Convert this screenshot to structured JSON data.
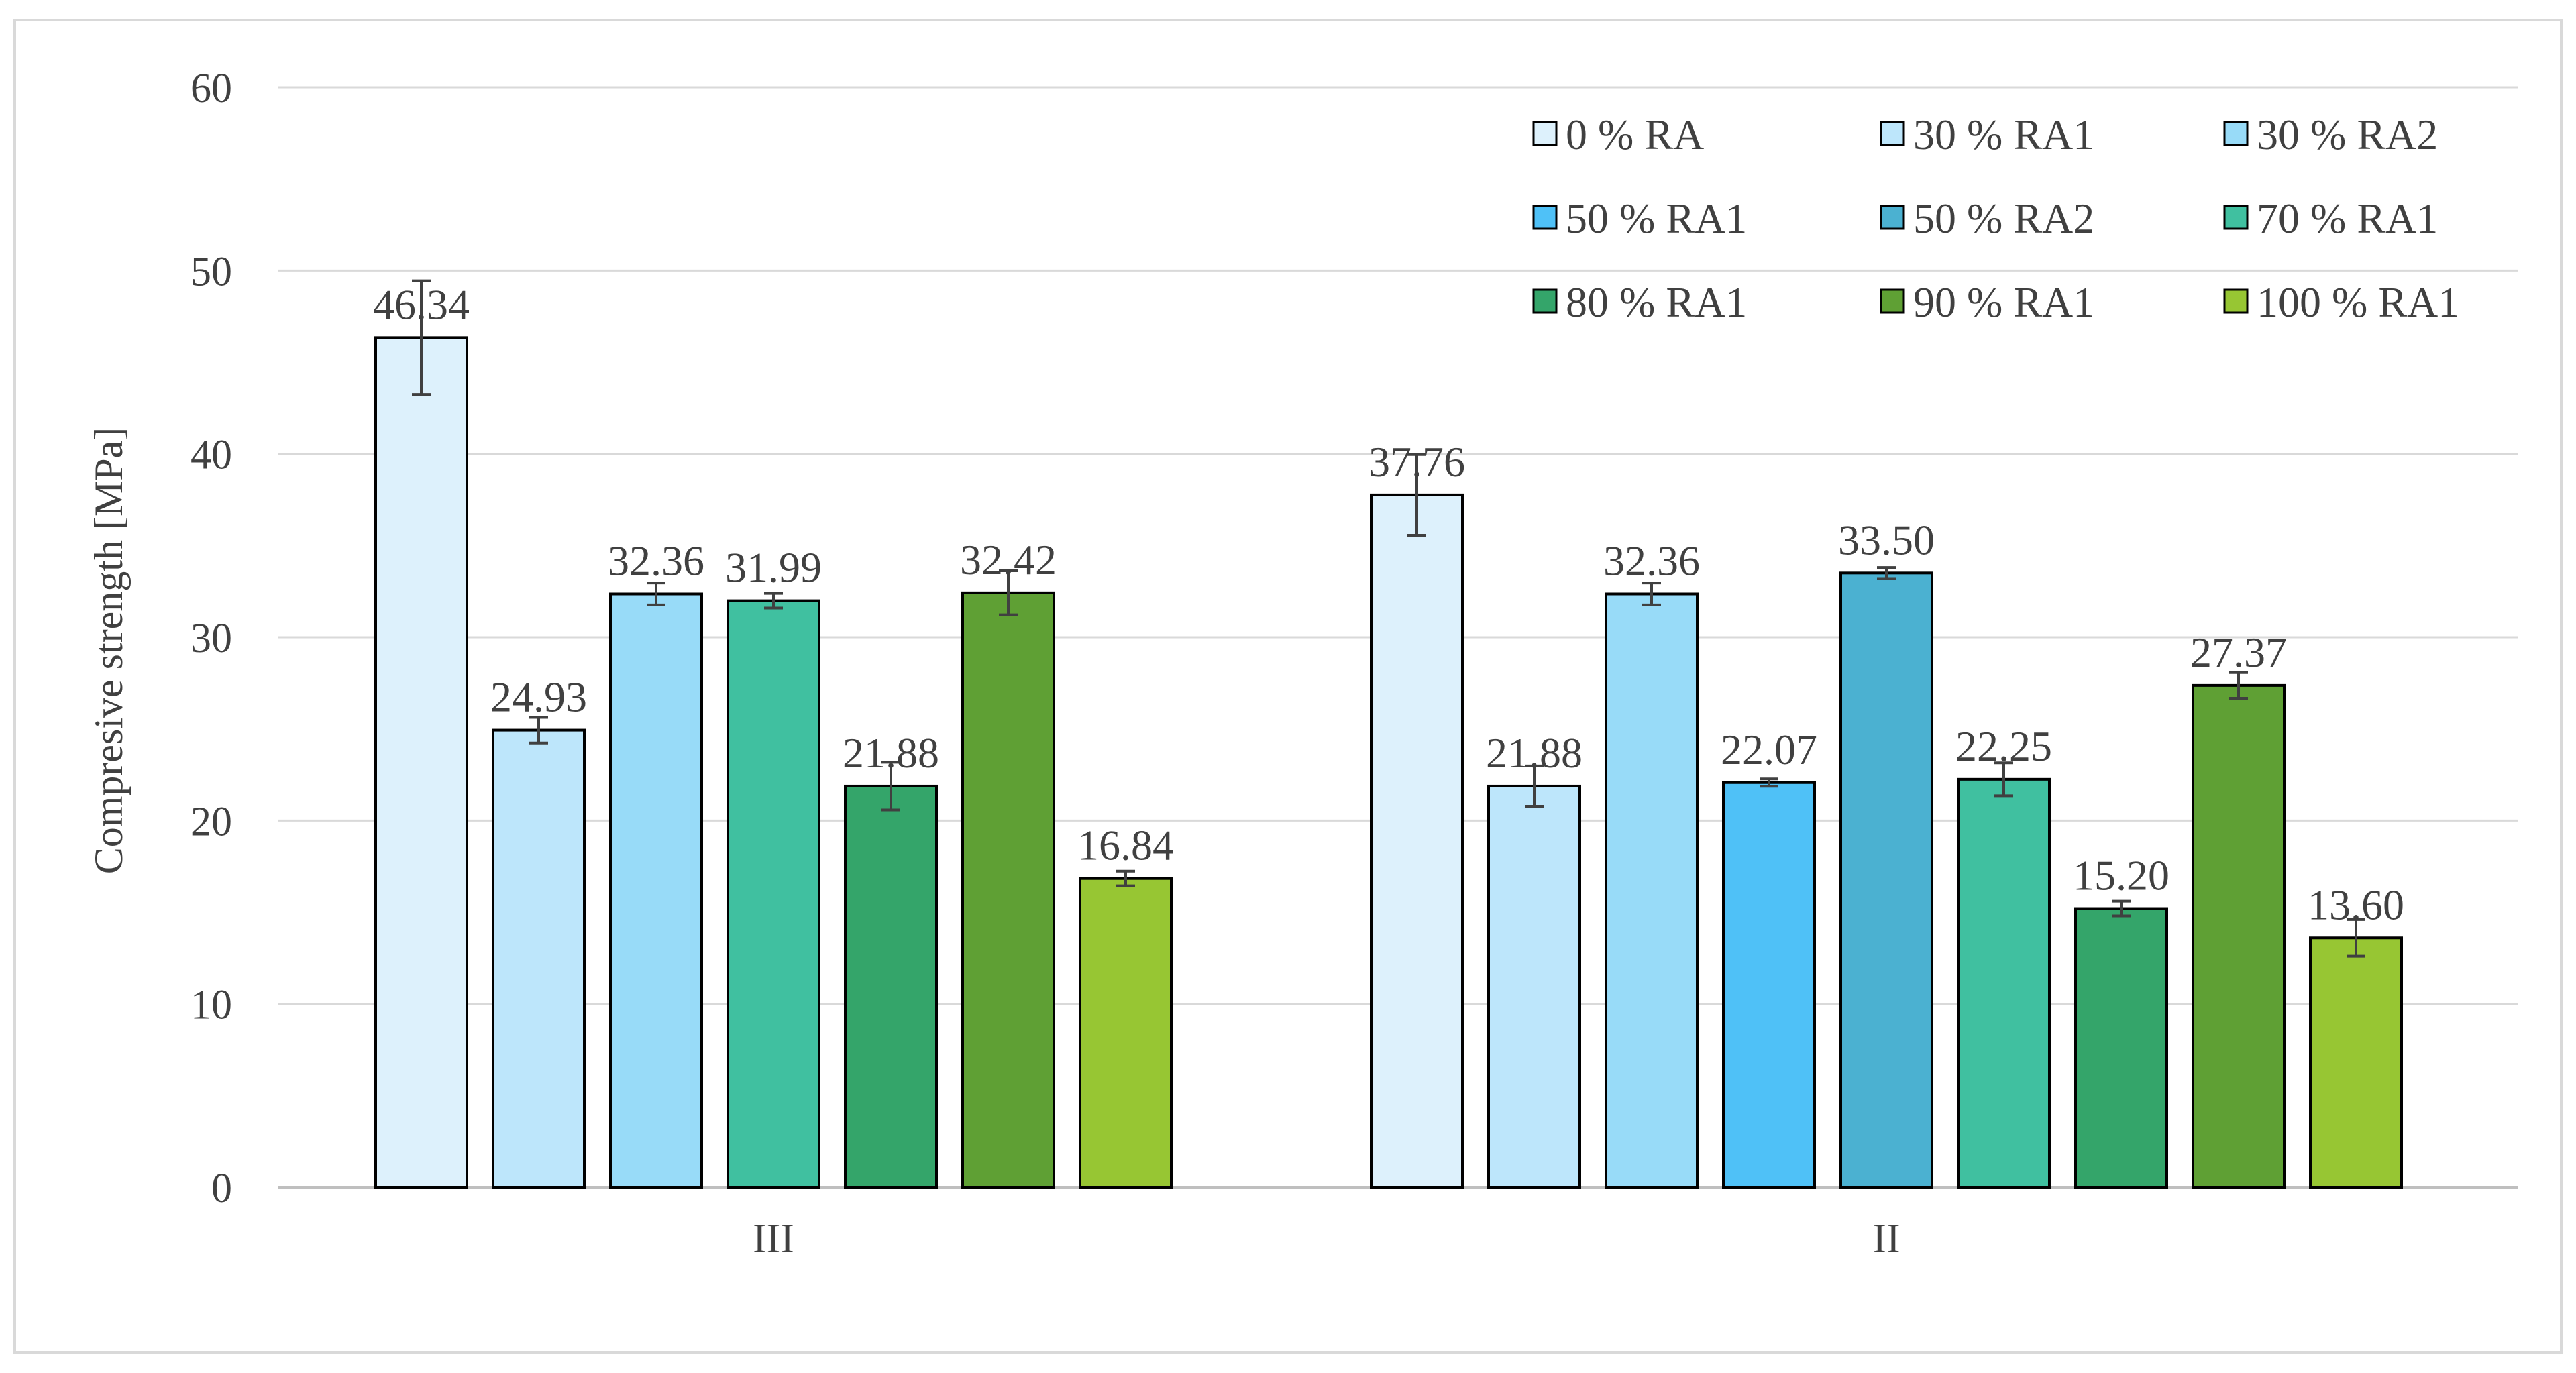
{
  "chart_data": {
    "type": "bar",
    "title": "",
    "xlabel": "",
    "ylabel": "Compresive  strength  [MPa]",
    "ylim": [
      0,
      60
    ],
    "yticks": [
      0,
      10,
      20,
      30,
      40,
      50,
      60
    ],
    "grid": true,
    "legend_position": "top-right",
    "legend": [
      {
        "name": "0 % RA",
        "color": "#ddf1fc"
      },
      {
        "name": "30 % RA1",
        "color": "#bde6fb"
      },
      {
        "name": "30 % RA2",
        "color": "#98dbf8"
      },
      {
        "name": "50 % RA1",
        "color": "#4fc1f7"
      },
      {
        "name": "50 % RA2",
        "color": "#4bb1d1"
      },
      {
        "name": "70 % RA1",
        "color": "#40c0a0"
      },
      {
        "name": "80 % RA1",
        "color": "#34a56a"
      },
      {
        "name": "90 % RA1",
        "color": "#5fa034"
      },
      {
        "name": "100 % RA1",
        "color": "#97c633"
      }
    ],
    "groups": [
      {
        "label": "III",
        "bars": [
          {
            "series": "0 % RA",
            "value": 46.34,
            "label": "46.34",
            "error": 3.1
          },
          {
            "series": "30 % RA1",
            "value": 24.93,
            "label": "24.93",
            "error": 0.7
          },
          {
            "series": "30 % RA2",
            "value": 32.36,
            "label": "32.36",
            "error": 0.6
          },
          {
            "series": "70 % RA1",
            "value": 31.99,
            "label": "31.99",
            "error": 0.4
          },
          {
            "series": "80 % RA1",
            "value": 21.88,
            "label": "21.88",
            "error": 1.3
          },
          {
            "series": "90 % RA1",
            "value": 32.42,
            "label": "32.42",
            "error": 1.2
          },
          {
            "series": "100 % RA1",
            "value": 16.84,
            "label": "16.84",
            "error": 0.4
          }
        ]
      },
      {
        "label": "II",
        "bars": [
          {
            "series": "0 % RA",
            "value": 37.76,
            "label": "37.76",
            "error": 2.2
          },
          {
            "series": "30 % RA1",
            "value": 21.88,
            "label": "21.88",
            "error": 1.1
          },
          {
            "series": "30 % RA2",
            "value": 32.36,
            "label": "32.36",
            "error": 0.6
          },
          {
            "series": "50 % RA1",
            "value": 22.07,
            "label": "22.07",
            "error": 0.2
          },
          {
            "series": "50 % RA2",
            "value": 33.5,
            "label": "33.50",
            "error": 0.3
          },
          {
            "series": "70 % RA1",
            "value": 22.25,
            "label": "22.25",
            "error": 0.9
          },
          {
            "series": "80 % RA1",
            "value": 15.2,
            "label": "15.20",
            "error": 0.4
          },
          {
            "series": "90 % RA1",
            "value": 27.37,
            "label": "27.37",
            "error": 0.7
          },
          {
            "series": "100 % RA1",
            "value": 13.6,
            "label": "13.60",
            "error": 1.0
          }
        ]
      }
    ]
  }
}
